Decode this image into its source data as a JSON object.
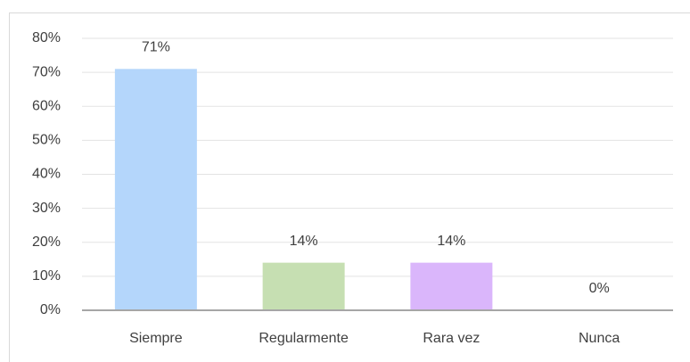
{
  "chart_data": {
    "type": "bar",
    "categories": [
      "Siempre",
      "Regularmente",
      "Rara vez",
      "Nunca"
    ],
    "values": [
      71,
      14,
      14,
      0
    ],
    "value_labels": [
      "71%",
      "14%",
      "14%",
      "0%"
    ],
    "colors": [
      "#b4d6fb",
      "#c6dfb2",
      "#dab6fb",
      "#f2c6a0"
    ],
    "ylim": [
      0,
      80
    ],
    "yticks": [
      {
        "value": 0,
        "label": "0%"
      },
      {
        "value": 10,
        "label": "10%"
      },
      {
        "value": 20,
        "label": "20%"
      },
      {
        "value": 30,
        "label": "30%"
      },
      {
        "value": 40,
        "label": "40%"
      },
      {
        "value": 50,
        "label": "50%"
      },
      {
        "value": 60,
        "label": "60%"
      },
      {
        "value": 70,
        "label": "70%"
      },
      {
        "value": 80,
        "label": "80%"
      }
    ],
    "grid": true
  }
}
